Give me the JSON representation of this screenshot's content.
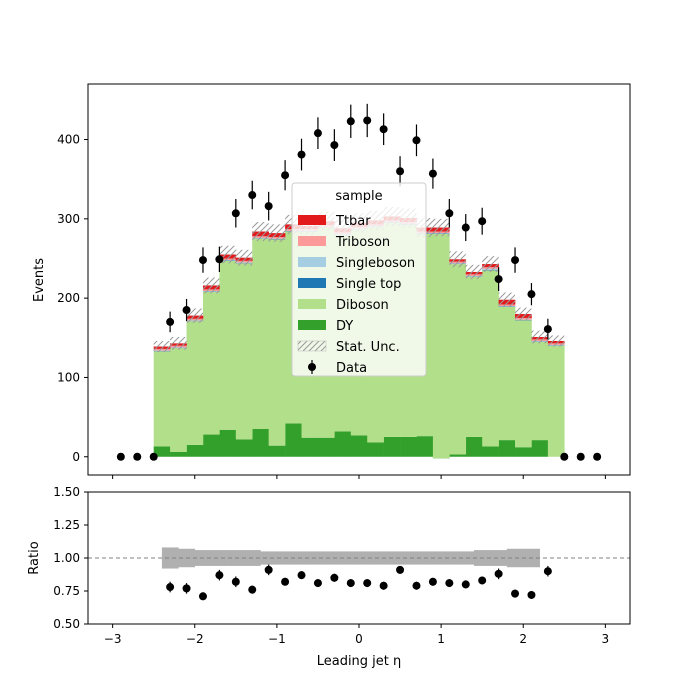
{
  "chart_data": {
    "type": "bar",
    "stacked": true,
    "xlabel": "Leading jet  η",
    "x_ticks": [
      -3,
      -2,
      -1,
      0,
      1,
      2,
      3
    ],
    "xlim": [
      -3.3,
      3.3
    ],
    "bin_edges": [
      -2.5,
      -2.3,
      -2.1,
      -1.9,
      -1.7,
      -1.5,
      -1.3,
      -1.1,
      -0.9,
      -0.7,
      -0.5,
      -0.3,
      -0.1,
      0.1,
      0.3,
      0.5,
      0.7,
      0.9,
      1.1,
      1.3,
      1.5,
      1.7,
      1.9,
      2.1,
      2.3,
      2.5
    ],
    "main": {
      "ylabel": "Events",
      "ylim": [
        -23,
        470
      ],
      "y_ticks": [
        0,
        100,
        200,
        300,
        400
      ],
      "series": [
        {
          "name": "DY",
          "color": "#33a02c",
          "values": [
            13,
            6,
            15,
            28,
            34,
            22,
            35,
            14,
            42,
            24,
            24,
            32,
            27,
            18,
            25,
            25,
            26,
            -2,
            3,
            25,
            13,
            21,
            12,
            21,
            0
          ]
        },
        {
          "name": "Diboson",
          "color": "#b2df8a",
          "values": [
            120,
            131,
            156,
            180,
            213,
            222,
            240,
            260,
            242,
            260,
            265,
            248,
            260,
            272,
            270,
            268,
            255,
            283,
            240,
            202,
            222,
            168,
            160,
            124,
            140
          ]
        },
        {
          "name": "Single top",
          "color": "#1f78b4",
          "values": [
            0.5,
            0.5,
            0.5,
            0.5,
            0.5,
            0.5,
            0.5,
            0.5,
            0.5,
            0.5,
            0.5,
            0.5,
            0.5,
            0.5,
            0.5,
            0.5,
            0.5,
            0.5,
            0.5,
            0.5,
            0.5,
            0.5,
            0.5,
            0.5,
            0.5
          ]
        },
        {
          "name": "Singleboson",
          "color": "#a6cee3",
          "values": [
            0.5,
            0.5,
            0.5,
            0.5,
            0.5,
            0.5,
            0.5,
            0.5,
            0.5,
            0.5,
            0.5,
            0.5,
            0.5,
            0.5,
            0.5,
            0.5,
            0.5,
            0.5,
            0.5,
            0.5,
            1.5,
            0.5,
            0.5,
            0.5,
            0.5
          ]
        },
        {
          "name": "Triboson",
          "color": "#fb9a99",
          "values": [
            2,
            2,
            2,
            2,
            2,
            2,
            2,
            2,
            2,
            2,
            2,
            2,
            2,
            2,
            2,
            2,
            2,
            2,
            2,
            2,
            2,
            2,
            2,
            2,
            2
          ]
        },
        {
          "name": "Ttbar",
          "color": "#e31a1c",
          "values": [
            3,
            3,
            4,
            5,
            5,
            4,
            6,
            5,
            6,
            4,
            5,
            5,
            5,
            5,
            5,
            5,
            5,
            5,
            3,
            3,
            4,
            6,
            5,
            3,
            3
          ]
        }
      ],
      "stat_unc": {
        "name": "Stat. Unc.",
        "values": [
          7,
          8,
          9,
          10,
          11,
          10,
          12,
          11,
          12,
          11,
          12,
          11,
          12,
          12,
          12,
          12,
          12,
          11,
          10,
          9,
          10,
          9,
          8,
          8,
          7
        ]
      },
      "data": {
        "name": "Data",
        "x": [
          -2.9,
          -2.7,
          -2.5,
          -2.3,
          -2.1,
          -1.9,
          -1.7,
          -1.5,
          -1.3,
          -1.1,
          -0.9,
          -0.7,
          -0.5,
          -0.3,
          -0.1,
          0.1,
          0.3,
          0.5,
          0.7,
          0.9,
          1.1,
          1.3,
          1.5,
          1.7,
          1.9,
          2.1,
          2.3,
          2.5,
          2.7,
          2.9
        ],
        "y": [
          0,
          0,
          0,
          170,
          185,
          248,
          249,
          307,
          330,
          316,
          355,
          381,
          408,
          393,
          423,
          424,
          413,
          360,
          399,
          357,
          307,
          289,
          297,
          224,
          248,
          205,
          161,
          0,
          0,
          0
        ],
        "err": [
          0,
          0,
          0,
          13,
          14,
          16,
          16,
          18,
          18,
          18,
          19,
          20,
          20,
          20,
          21,
          21,
          20,
          19,
          20,
          19,
          18,
          17,
          17,
          15,
          16,
          14,
          13,
          0,
          0,
          0
        ]
      },
      "legend": {
        "title": "sample",
        "placement": "center",
        "entries": [
          "Ttbar",
          "Triboson",
          "Singleboson",
          "Single top",
          "Diboson",
          "DY",
          "Stat. Unc.",
          "Data"
        ]
      }
    },
    "ratio": {
      "ylabel": "Ratio",
      "ylim": [
        0.5,
        1.5
      ],
      "y_ticks": [
        0.5,
        0.75,
        1.0,
        1.25,
        1.5
      ],
      "y_tick_labels": [
        "0.50",
        "0.75",
        "1.00",
        "1.25",
        "1.50"
      ],
      "reference_line": 1.0,
      "band_edges": [
        -2.4,
        -2.2,
        -2.0,
        -1.8,
        -1.6,
        -1.4,
        -1.2,
        -1.0,
        -0.8,
        -0.6,
        -0.4,
        -0.2,
        0.0,
        0.2,
        0.4,
        0.6,
        0.8,
        1.0,
        1.2,
        1.4,
        1.6,
        1.8,
        2.0,
        2.2
      ],
      "band_lo": [
        0.92,
        0.93,
        0.94,
        0.94,
        0.94,
        0.94,
        0.95,
        0.95,
        0.95,
        0.95,
        0.95,
        0.95,
        0.95,
        0.95,
        0.95,
        0.95,
        0.95,
        0.95,
        0.95,
        0.94,
        0.94,
        0.93,
        0.93
      ],
      "band_hi": [
        1.08,
        1.07,
        1.06,
        1.06,
        1.06,
        1.06,
        1.05,
        1.05,
        1.05,
        1.05,
        1.05,
        1.05,
        1.05,
        1.05,
        1.05,
        1.05,
        1.05,
        1.05,
        1.05,
        1.06,
        1.06,
        1.07,
        1.07
      ],
      "points": {
        "x": [
          -2.3,
          -2.1,
          -1.9,
          -1.7,
          -1.5,
          -1.3,
          -1.1,
          -0.9,
          -0.7,
          -0.5,
          -0.3,
          -0.1,
          0.1,
          0.3,
          0.5,
          0.7,
          0.9,
          1.1,
          1.3,
          1.5,
          1.7,
          1.9,
          2.1,
          2.3
        ],
        "y": [
          0.78,
          0.77,
          0.71,
          0.87,
          0.82,
          0.76,
          0.91,
          0.82,
          0.87,
          0.81,
          0.85,
          0.81,
          0.81,
          0.79,
          0.91,
          0.79,
          0.82,
          0.81,
          0.8,
          0.83,
          0.88,
          0.73,
          0.72,
          0.9
        ],
        "err": [
          0.04,
          0.04,
          0.03,
          0.04,
          0.04,
          0.03,
          0.04,
          0.03,
          0.03,
          0.03,
          0.03,
          0.03,
          0.03,
          0.03,
          0.03,
          0.03,
          0.03,
          0.03,
          0.03,
          0.03,
          0.04,
          0.03,
          0.03,
          0.04
        ]
      }
    }
  }
}
